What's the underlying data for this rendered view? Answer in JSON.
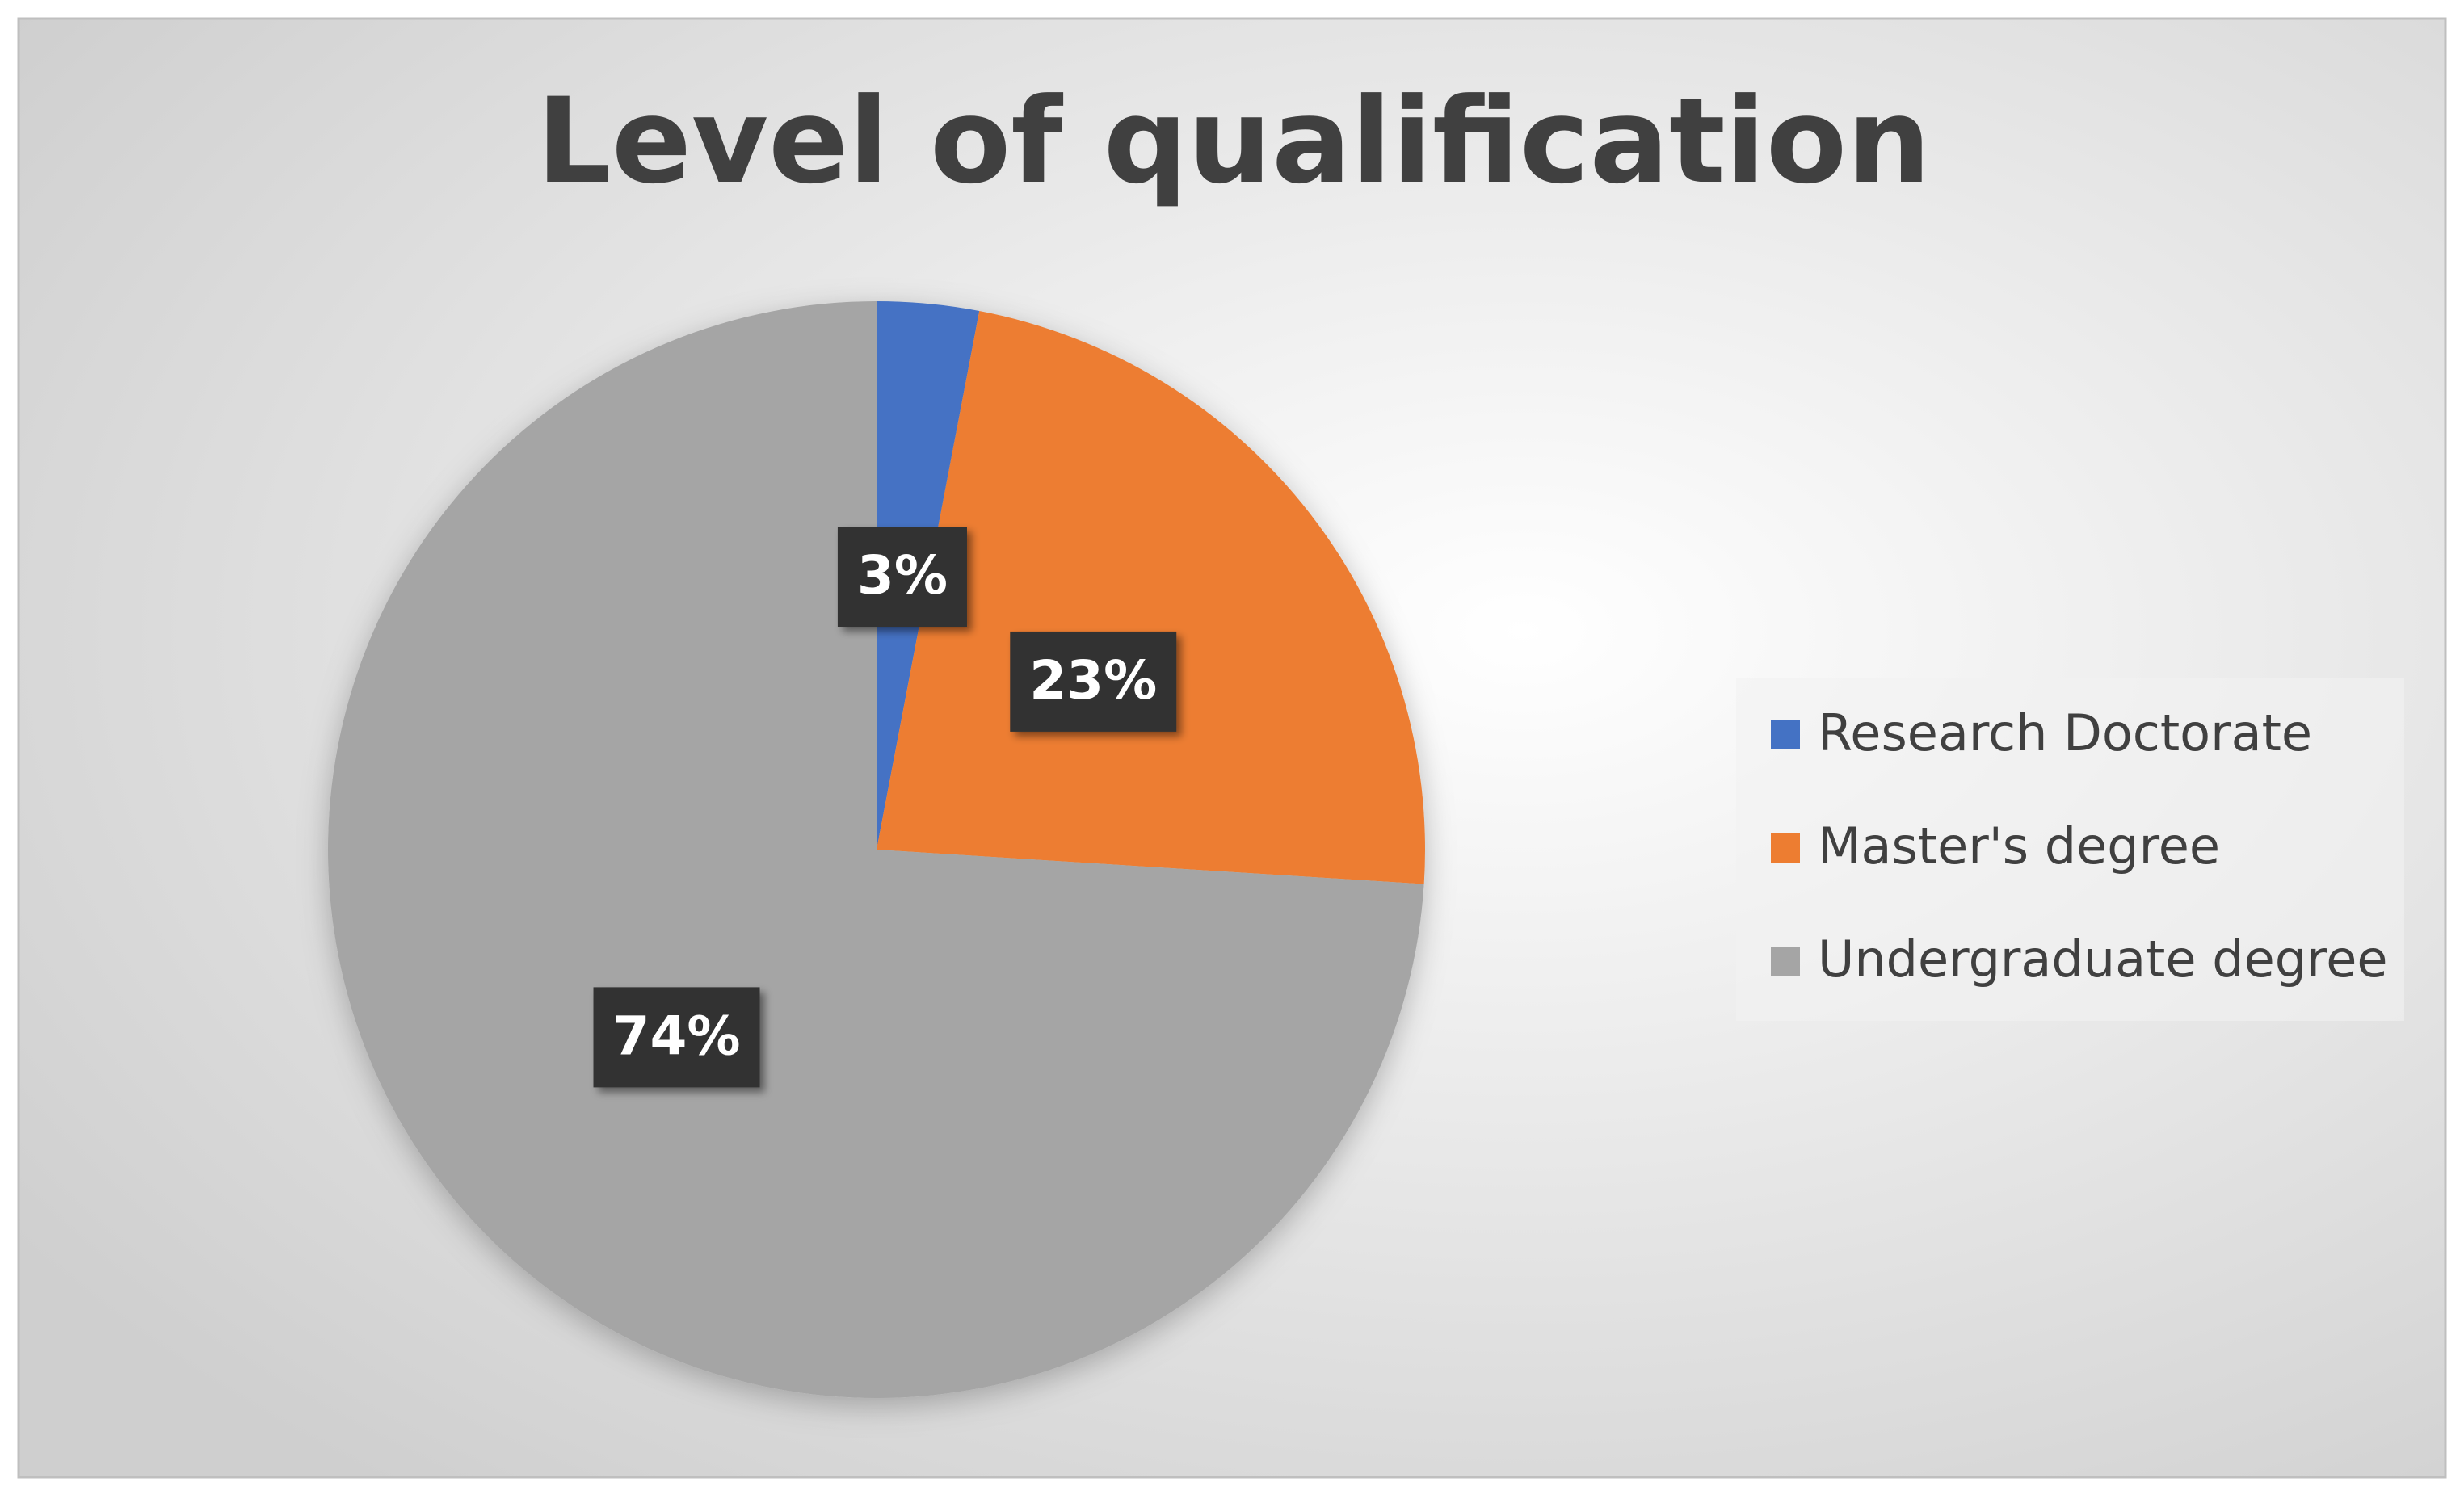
{
  "chart_data": {
    "type": "pie",
    "title": "Level of qualification",
    "categories": [
      "Research Doctorate",
      "Master's degree",
      "Undergraduate degree"
    ],
    "values": [
      3,
      23,
      74
    ],
    "value_labels": [
      "3%",
      "23%",
      "74%"
    ],
    "colors": [
      "#4472c4",
      "#ed7d31",
      "#a5a5a5"
    ],
    "legend": "right"
  }
}
